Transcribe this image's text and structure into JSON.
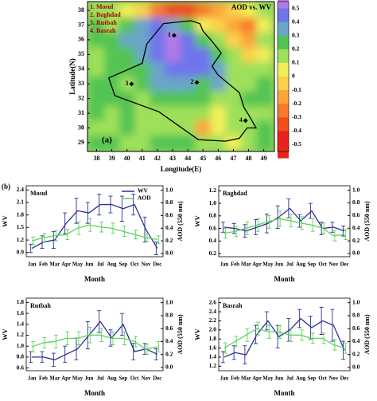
{
  "chart_data": [
    {
      "type": "heatmap",
      "title": "AOD vs. WV",
      "panel_label": "(a)",
      "xlabel": "Longitude(E)",
      "ylabel": "Latitude(N)",
      "station_names": [
        "1. Mosul",
        "2. Baghdad",
        "3. Rutbah",
        "4. Basrah"
      ],
      "stations": [
        {
          "label": "1",
          "lon": 43.1,
          "lat": 36.3
        },
        {
          "label": "2",
          "lon": 44.6,
          "lat": 33.1
        },
        {
          "label": "3",
          "lon": 40.3,
          "lat": 33.0
        },
        {
          "label": "4",
          "lon": 47.8,
          "lat": 30.5
        }
      ],
      "x": [
        38,
        39,
        40,
        41,
        42,
        43,
        44,
        45,
        46,
        47,
        48,
        49
      ],
      "y": [
        38,
        37,
        36,
        35,
        34,
        33,
        32,
        31,
        30,
        29
      ],
      "z": [
        [
          0.1,
          0.1,
          0.0,
          -0.1,
          -0.3,
          -0.4,
          -0.4,
          -0.3,
          -0.2,
          -0.1,
          0.0,
          0.1
        ],
        [
          0.2,
          0.1,
          0.2,
          0.3,
          0.4,
          0.3,
          0.2,
          0.0,
          -0.1,
          -0.2,
          -0.3,
          0.0
        ],
        [
          0.2,
          0.2,
          0.3,
          0.3,
          0.4,
          0.5,
          0.4,
          0.2,
          0.1,
          -0.1,
          -0.2,
          0.1
        ],
        [
          0.1,
          0.2,
          0.2,
          0.3,
          0.4,
          0.5,
          0.4,
          0.4,
          0.2,
          0.1,
          -0.1,
          0.0
        ],
        [
          0.1,
          0.2,
          0.2,
          0.2,
          0.3,
          0.4,
          0.4,
          0.4,
          0.3,
          0.1,
          0.1,
          0.1
        ],
        [
          0.2,
          0.2,
          0.1,
          0.2,
          0.3,
          0.3,
          0.3,
          0.2,
          0.3,
          0.1,
          0.1,
          0.2
        ],
        [
          0.2,
          0.2,
          0.2,
          0.1,
          0.2,
          0.2,
          0.2,
          0.2,
          0.1,
          0.1,
          0.2,
          0.2
        ],
        [
          0.2,
          0.1,
          0.2,
          0.1,
          0.1,
          0.1,
          0.1,
          0.1,
          0.0,
          0.1,
          0.1,
          0.1
        ],
        [
          0.1,
          0.1,
          0.2,
          0.1,
          0.1,
          0.1,
          0.1,
          -0.2,
          0.0,
          0.1,
          0.1,
          0.2
        ],
        [
          0.2,
          0.2,
          0.1,
          0.1,
          0.2,
          0.2,
          0.2,
          0.1,
          0.1,
          0.0,
          0.1,
          0.2
        ]
      ],
      "xlim": [
        37.4,
        49.7
      ],
      "ylim": [
        28.4,
        38.6
      ],
      "xticks": [
        38,
        39,
        40,
        41,
        42,
        43,
        44,
        45,
        46,
        47,
        48,
        49
      ],
      "yticks": [
        29,
        30,
        31,
        32,
        33,
        34,
        35,
        36,
        37,
        38
      ],
      "clim": [
        -0.55,
        0.55
      ],
      "cticks": [
        0.5,
        0.4,
        0.3,
        0.2,
        0.1,
        0,
        -0.1,
        -0.2,
        -0.3,
        -0.4,
        -0.5
      ],
      "colors": [
        "#b27ae6",
        "#6e74ea",
        "#6aa6c8",
        "#52c452",
        "#9ee05a",
        "#f2ee5a",
        "#fbd04c",
        "#fba43a",
        "#f77a2a",
        "#f04e1f",
        "#e8231b"
      ]
    },
    {
      "type": "line",
      "title": "Mosul",
      "panel_label": "(b)",
      "xlabel": "Month",
      "ylabel": "WV",
      "y2label": "AOD (550 nm)",
      "legend": "top",
      "categories": [
        "Jan",
        "Feb",
        "Mar",
        "Apr",
        "May",
        "Jun",
        "Jul",
        "Aug",
        "Sep",
        "Oct",
        "Nov",
        "Dec"
      ],
      "ylim": [
        0.8,
        2.5
      ],
      "yticks": [
        0.9,
        1.2,
        1.5,
        1.8,
        2.1,
        2.4
      ],
      "y2lim": [
        -0.05,
        1.07
      ],
      "y2ticks": [
        {
          "value": 0,
          "label": "0.0"
        },
        0.2,
        0.4,
        0.6,
        0.8,
        {
          "value": 1,
          "label": "1.0"
        }
      ],
      "series": [
        {
          "name": "WV",
          "color": "#2b2f8f",
          "values": [
            1.0,
            1.15,
            1.2,
            1.6,
            1.9,
            1.85,
            2.05,
            2.05,
            1.95,
            2.05,
            1.45,
            1.0
          ],
          "errors": [
            0.1,
            0.15,
            0.2,
            0.25,
            0.3,
            0.25,
            0.25,
            0.2,
            0.3,
            0.25,
            0.3,
            0.15
          ]
        },
        {
          "name": "AOD",
          "color": "#5dd35d",
          "axis": "y2",
          "values": [
            0.2,
            0.25,
            0.28,
            0.3,
            0.4,
            0.45,
            0.42,
            0.4,
            0.35,
            0.3,
            0.25,
            0.22
          ],
          "errors": [
            0.06,
            0.07,
            0.08,
            0.08,
            0.1,
            0.1,
            0.08,
            0.08,
            0.08,
            0.07,
            0.06,
            0.06
          ]
        }
      ]
    },
    {
      "type": "line",
      "title": "Baghdad",
      "xlabel": "Month",
      "ylabel": "WV",
      "y2label": "AOD (550 nm)",
      "categories": [
        "Jan",
        "Feb",
        "Mar",
        "Apr",
        "May",
        "Jun",
        "Jul",
        "Aug",
        "Sep",
        "Oct",
        "Nov",
        "Dec"
      ],
      "ylim": [
        0.15,
        1.28
      ],
      "yticks": [
        0.2,
        0.4,
        0.6,
        0.8,
        {
          "value": 1,
          "label": "1.0"
        },
        1.2
      ],
      "y2lim": [
        -0.05,
        1.07
      ],
      "y2ticks": [
        {
          "value": 0,
          "label": "0.0"
        },
        0.2,
        0.4,
        0.6,
        0.8,
        {
          "value": 1,
          "label": "1.0"
        }
      ],
      "series": [
        {
          "color": "#2b2f8f",
          "values": [
            0.62,
            0.6,
            0.56,
            0.62,
            0.68,
            0.78,
            0.92,
            0.72,
            0.88,
            0.6,
            0.62,
            0.56
          ],
          "errors": [
            0.08,
            0.08,
            0.1,
            0.12,
            0.15,
            0.18,
            0.15,
            0.1,
            0.12,
            0.1,
            0.08,
            0.08
          ]
        },
        {
          "color": "#5dd35d",
          "axis": "y2",
          "values": [
            0.32,
            0.35,
            0.4,
            0.45,
            0.5,
            0.55,
            0.52,
            0.48,
            0.45,
            0.4,
            0.28,
            0.3
          ],
          "errors": [
            0.08,
            0.08,
            0.1,
            0.1,
            0.1,
            0.12,
            0.1,
            0.1,
            0.1,
            0.08,
            0.08,
            0.08
          ]
        }
      ]
    },
    {
      "type": "line",
      "title": "Rutbah",
      "xlabel": "Month",
      "ylabel": "WV",
      "y2label": "AOD (550 nm)",
      "categories": [
        "Jan",
        "Feb",
        "Mar",
        "Apr",
        "May",
        "Jun",
        "Jul",
        "Aug",
        "Sep",
        "Oct",
        "Nov",
        "Dec"
      ],
      "ylim": [
        0.55,
        1.88
      ],
      "yticks": [
        0.6,
        0.8,
        {
          "value": 1,
          "label": "1.0"
        },
        1.2,
        1.4,
        1.6,
        1.8
      ],
      "y2lim": [
        -0.05,
        1.07
      ],
      "y2ticks": [
        {
          "value": 0,
          "label": "0.0"
        },
        0.2,
        0.4,
        0.6,
        0.8,
        {
          "value": 1,
          "label": "1.0"
        }
      ],
      "series": [
        {
          "color": "#2b2f8f",
          "values": [
            0.8,
            0.8,
            0.75,
            0.85,
            0.95,
            1.2,
            1.45,
            1.15,
            1.4,
            0.9,
            0.95,
            0.85
          ],
          "errors": [
            0.1,
            0.1,
            0.12,
            0.15,
            0.2,
            0.25,
            0.2,
            0.15,
            0.2,
            0.15,
            0.1,
            0.1
          ]
        },
        {
          "color": "#5dd35d",
          "axis": "y2",
          "values": [
            0.32,
            0.38,
            0.4,
            0.45,
            0.45,
            0.5,
            0.5,
            0.45,
            0.45,
            0.4,
            0.28,
            0.32
          ],
          "errors": [
            0.08,
            0.08,
            0.1,
            0.1,
            0.1,
            0.12,
            0.1,
            0.1,
            0.1,
            0.08,
            0.08,
            0.08
          ]
        }
      ]
    },
    {
      "type": "line",
      "title": "Basrah",
      "xlabel": "Month",
      "ylabel": "WV",
      "y2label": "AOD (550 nm)",
      "categories": [
        "Jan",
        "Feb",
        "Mar",
        "Apr",
        "May",
        "Jun",
        "Jul",
        "Aug",
        "Sep",
        "Oct",
        "Nov",
        "Dec"
      ],
      "ylim": [
        1.1,
        2.7
      ],
      "yticks": [
        1.2,
        1.4,
        1.6,
        1.8,
        {
          "value": 2,
          "label": "2.0"
        },
        2.2,
        2.4,
        2.6
      ],
      "y2lim": [
        -0.05,
        1.07
      ],
      "y2ticks": [
        {
          "value": 0,
          "label": "0.0"
        },
        0.2,
        0.4,
        0.6,
        0.8,
        {
          "value": 1,
          "label": "1.0"
        }
      ],
      "series": [
        {
          "color": "#2b2f8f",
          "values": [
            1.4,
            1.5,
            1.45,
            1.9,
            2.2,
            1.85,
            2.0,
            2.25,
            2.05,
            2.2,
            2.1,
            1.55
          ],
          "errors": [
            0.12,
            0.15,
            0.2,
            0.2,
            0.2,
            0.25,
            0.25,
            0.2,
            0.25,
            0.3,
            0.35,
            0.2
          ]
        },
        {
          "color": "#5dd35d",
          "axis": "y2",
          "values": [
            0.3,
            0.4,
            0.5,
            0.6,
            0.55,
            0.55,
            0.5,
            0.5,
            0.45,
            0.45,
            0.35,
            0.3
          ],
          "errors": [
            0.08,
            0.08,
            0.1,
            0.1,
            0.1,
            0.1,
            0.1,
            0.08,
            0.08,
            0.08,
            0.08,
            0.08
          ]
        }
      ]
    }
  ]
}
